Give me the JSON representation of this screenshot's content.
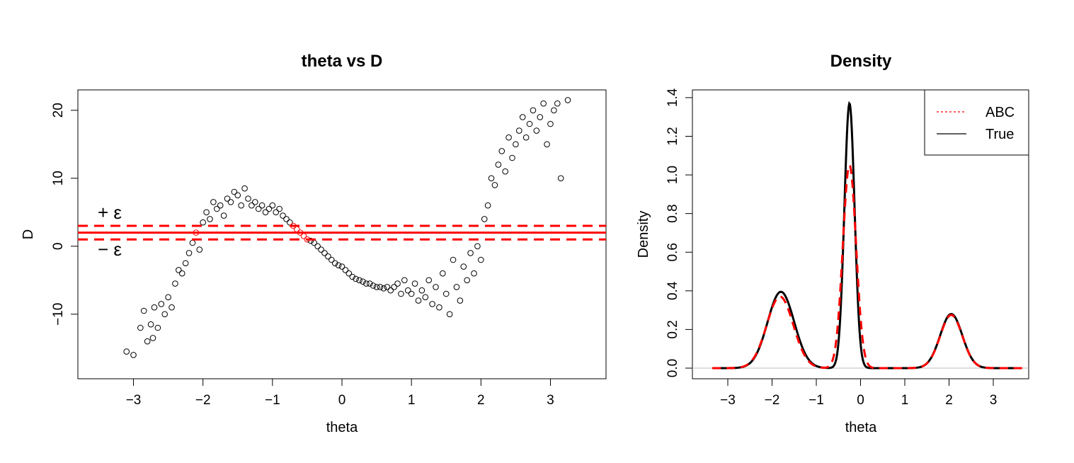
{
  "colors": {
    "accent": "#ff0000",
    "points": "#000000",
    "baseline": "#bebebe"
  },
  "chart_data": [
    {
      "type": "scatter",
      "title": "theta vs D",
      "xlabel": "theta",
      "ylabel": "D",
      "xlim": [
        -3.8,
        3.8
      ],
      "ylim": [
        -19.5,
        23.0
      ],
      "xticks": [
        {
          "v": -3,
          "label": "−3"
        },
        {
          "v": -2,
          "label": "−2"
        },
        {
          "v": -1,
          "label": "−1"
        },
        {
          "v": 0,
          "label": "0"
        },
        {
          "v": 1,
          "label": "1"
        },
        {
          "v": 2,
          "label": "2"
        },
        {
          "v": 3,
          "label": "3"
        }
      ],
      "yticks": [
        {
          "v": -10,
          "label": "−10"
        },
        {
          "v": 0,
          "label": "0"
        },
        {
          "v": 10,
          "label": "10"
        },
        {
          "v": 20,
          "label": "20"
        }
      ],
      "reference_lines": {
        "observed": 2.0,
        "upper": 3.0,
        "lower": 1.0,
        "style": {
          "observed": "solid",
          "bounds": "dashed"
        },
        "color": "red"
      },
      "annotations": {
        "upper": "+ ε",
        "lower": "− ε"
      },
      "points_note_shape": "open circles",
      "accepted_color": "red",
      "rejected_color": "black",
      "series": [
        {
          "x": [
            -3.1,
            -3.0,
            -2.9,
            -2.85,
            -2.8,
            -2.75,
            -2.72,
            -2.7,
            -2.65,
            -2.6,
            -2.55,
            -2.5,
            -2.45,
            -2.4,
            -2.35,
            -2.3,
            -2.25,
            -2.2,
            -2.15,
            -2.1,
            -2.05,
            -2.0,
            -1.95,
            -1.9,
            -1.85,
            -1.8,
            -1.75,
            -1.7,
            -1.65,
            -1.6,
            -1.55,
            -1.5,
            -1.45,
            -1.4,
            -1.35,
            -1.3,
            -1.25,
            -1.2,
            -1.15,
            -1.1,
            -1.05,
            -1.0,
            -0.95,
            -0.9,
            -0.85,
            -0.8,
            -0.75,
            -0.7,
            -0.65,
            -0.6,
            -0.55,
            -0.5,
            -0.45,
            -0.4,
            -0.35,
            -0.3,
            -0.25,
            -0.2,
            -0.15,
            -0.1,
            -0.05,
            0.0,
            0.05,
            0.1,
            0.15,
            0.2,
            0.25,
            0.3,
            0.35,
            0.4,
            0.45,
            0.5,
            0.55,
            0.6,
            0.65,
            0.7,
            0.75,
            0.8,
            0.85,
            0.9,
            0.95,
            1.0,
            1.05,
            1.1,
            1.15,
            1.2,
            1.25,
            1.3,
            1.35,
            1.4,
            1.45,
            1.5,
            1.55,
            1.6,
            1.65,
            1.7,
            1.75,
            1.8,
            1.85,
            1.9,
            1.95,
            2.0,
            2.05,
            2.1,
            2.15,
            2.2,
            2.25,
            2.3,
            2.35,
            2.4,
            2.45,
            2.5,
            2.55,
            2.6,
            2.65,
            2.7,
            2.75,
            2.8,
            2.85,
            2.9,
            2.95,
            3.0,
            3.05,
            3.1,
            3.15,
            3.25
          ],
          "y": [
            -15.5,
            -16.0,
            -12.0,
            -9.5,
            -14.0,
            -11.5,
            -13.5,
            -9.0,
            -12.0,
            -8.5,
            -10.0,
            -7.5,
            -9.0,
            -5.5,
            -3.5,
            -4.0,
            -2.5,
            -1.0,
            0.5,
            2.0,
            -0.5,
            3.5,
            5.0,
            4.0,
            6.5,
            5.5,
            6.0,
            4.5,
            7.0,
            6.5,
            8.0,
            7.5,
            6.0,
            8.5,
            7.0,
            6.0,
            6.5,
            5.5,
            6.0,
            5.0,
            5.5,
            6.0,
            5.0,
            5.5,
            4.5,
            4.0,
            3.5,
            3.0,
            2.5,
            2.0,
            1.5,
            1.0,
            0.8,
            0.5,
            0.0,
            -0.5,
            -1.0,
            -1.5,
            -2.0,
            -2.5,
            -2.8,
            -3.0,
            -3.5,
            -4.0,
            -4.5,
            -4.8,
            -5.0,
            -5.2,
            -5.5,
            -5.5,
            -5.8,
            -6.0,
            -6.0,
            -6.2,
            -6.0,
            -6.5,
            -6.0,
            -5.5,
            -7.0,
            -5.0,
            -6.5,
            -7.0,
            -5.5,
            -8.0,
            -6.5,
            -7.5,
            -5.0,
            -8.5,
            -6.0,
            -9.0,
            -4.0,
            -7.0,
            -10.0,
            -2.0,
            -6.0,
            -8.0,
            -3.0,
            -5.0,
            -1.0,
            -4.0,
            0.0,
            -2.0,
            4.0,
            6.0,
            10.0,
            9.0,
            12.0,
            14.0,
            11.0,
            16.0,
            13.0,
            15.0,
            17.0,
            19.0,
            16.0,
            18.0,
            20.0,
            17.0,
            19.0,
            21.0,
            15.0,
            18.0,
            20.0,
            21.0,
            10.0,
            21.5
          ]
        }
      ]
    },
    {
      "type": "line",
      "title": "Density",
      "xlabel": "theta",
      "ylabel": "Density",
      "xlim": [
        -3.8,
        3.8
      ],
      "ylim": [
        -0.055,
        1.44
      ],
      "xticks": [
        {
          "v": -3,
          "label": "−3"
        },
        {
          "v": -2,
          "label": "−2"
        },
        {
          "v": -1,
          "label": "−1"
        },
        {
          "v": 0,
          "label": "0"
        },
        {
          "v": 1,
          "label": "1"
        },
        {
          "v": 2,
          "label": "2"
        },
        {
          "v": 3,
          "label": "3"
        }
      ],
      "yticks": [
        {
          "v": 0.0,
          "label": "0.0"
        },
        {
          "v": 0.2,
          "label": "0.2"
        },
        {
          "v": 0.4,
          "label": "0.4"
        },
        {
          "v": 0.6,
          "label": "0.6"
        },
        {
          "v": 0.8,
          "label": "0.8"
        },
        {
          "v": 1.0,
          "label": "1.0"
        },
        {
          "v": 1.2,
          "label": "1.2"
        },
        {
          "v": 1.4,
          "label": "1.4"
        }
      ],
      "legend": {
        "position": "top-right",
        "entries": [
          {
            "label": "ABC",
            "style": "dashed",
            "color": "#ff0000"
          },
          {
            "label": "True",
            "style": "solid",
            "color": "#000000"
          }
        ]
      },
      "series": [
        {
          "name": "True",
          "x_range": [
            -3.35,
            3.5
          ],
          "components": [
            {
              "mean": -1.8,
              "peak": 0.395,
              "sd": 0.3
            },
            {
              "mean": -0.25,
              "peak": 1.37,
              "sd": 0.115
            },
            {
              "mean": 2.05,
              "peak": 0.28,
              "sd": 0.25
            }
          ]
        },
        {
          "name": "ABC",
          "x_range": [
            -3.35,
            3.75
          ],
          "components": [
            {
              "mean": -1.82,
              "peak": 0.37,
              "sd": 0.3
            },
            {
              "mean": -0.25,
              "peak": 1.05,
              "sd": 0.15
            },
            {
              "mean": 2.05,
              "peak": 0.275,
              "sd": 0.25
            }
          ]
        }
      ]
    }
  ]
}
